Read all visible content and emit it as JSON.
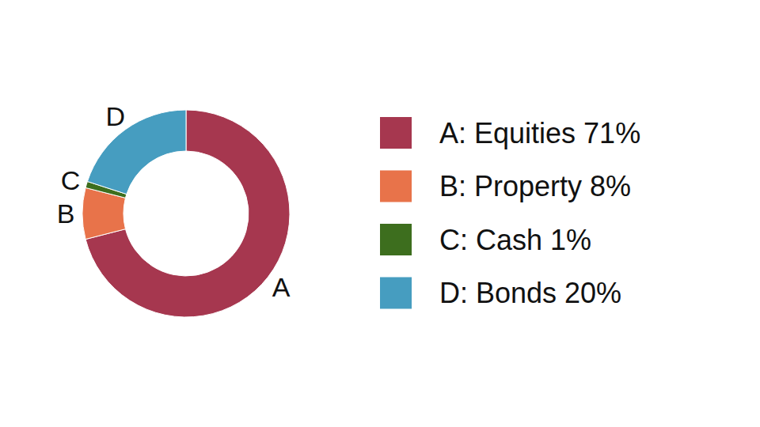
{
  "chart_data": {
    "type": "donut",
    "categories": [
      "A",
      "B",
      "C",
      "D"
    ],
    "legend_labels": [
      "A: Equities 71%",
      "B: Property 8%",
      "C: Cash 1%",
      "D: Bonds 20%"
    ],
    "values": [
      71,
      8,
      1,
      20
    ],
    "colors": [
      "#a6374f",
      "#e8734a",
      "#3d6e1e",
      "#469dc0"
    ]
  }
}
